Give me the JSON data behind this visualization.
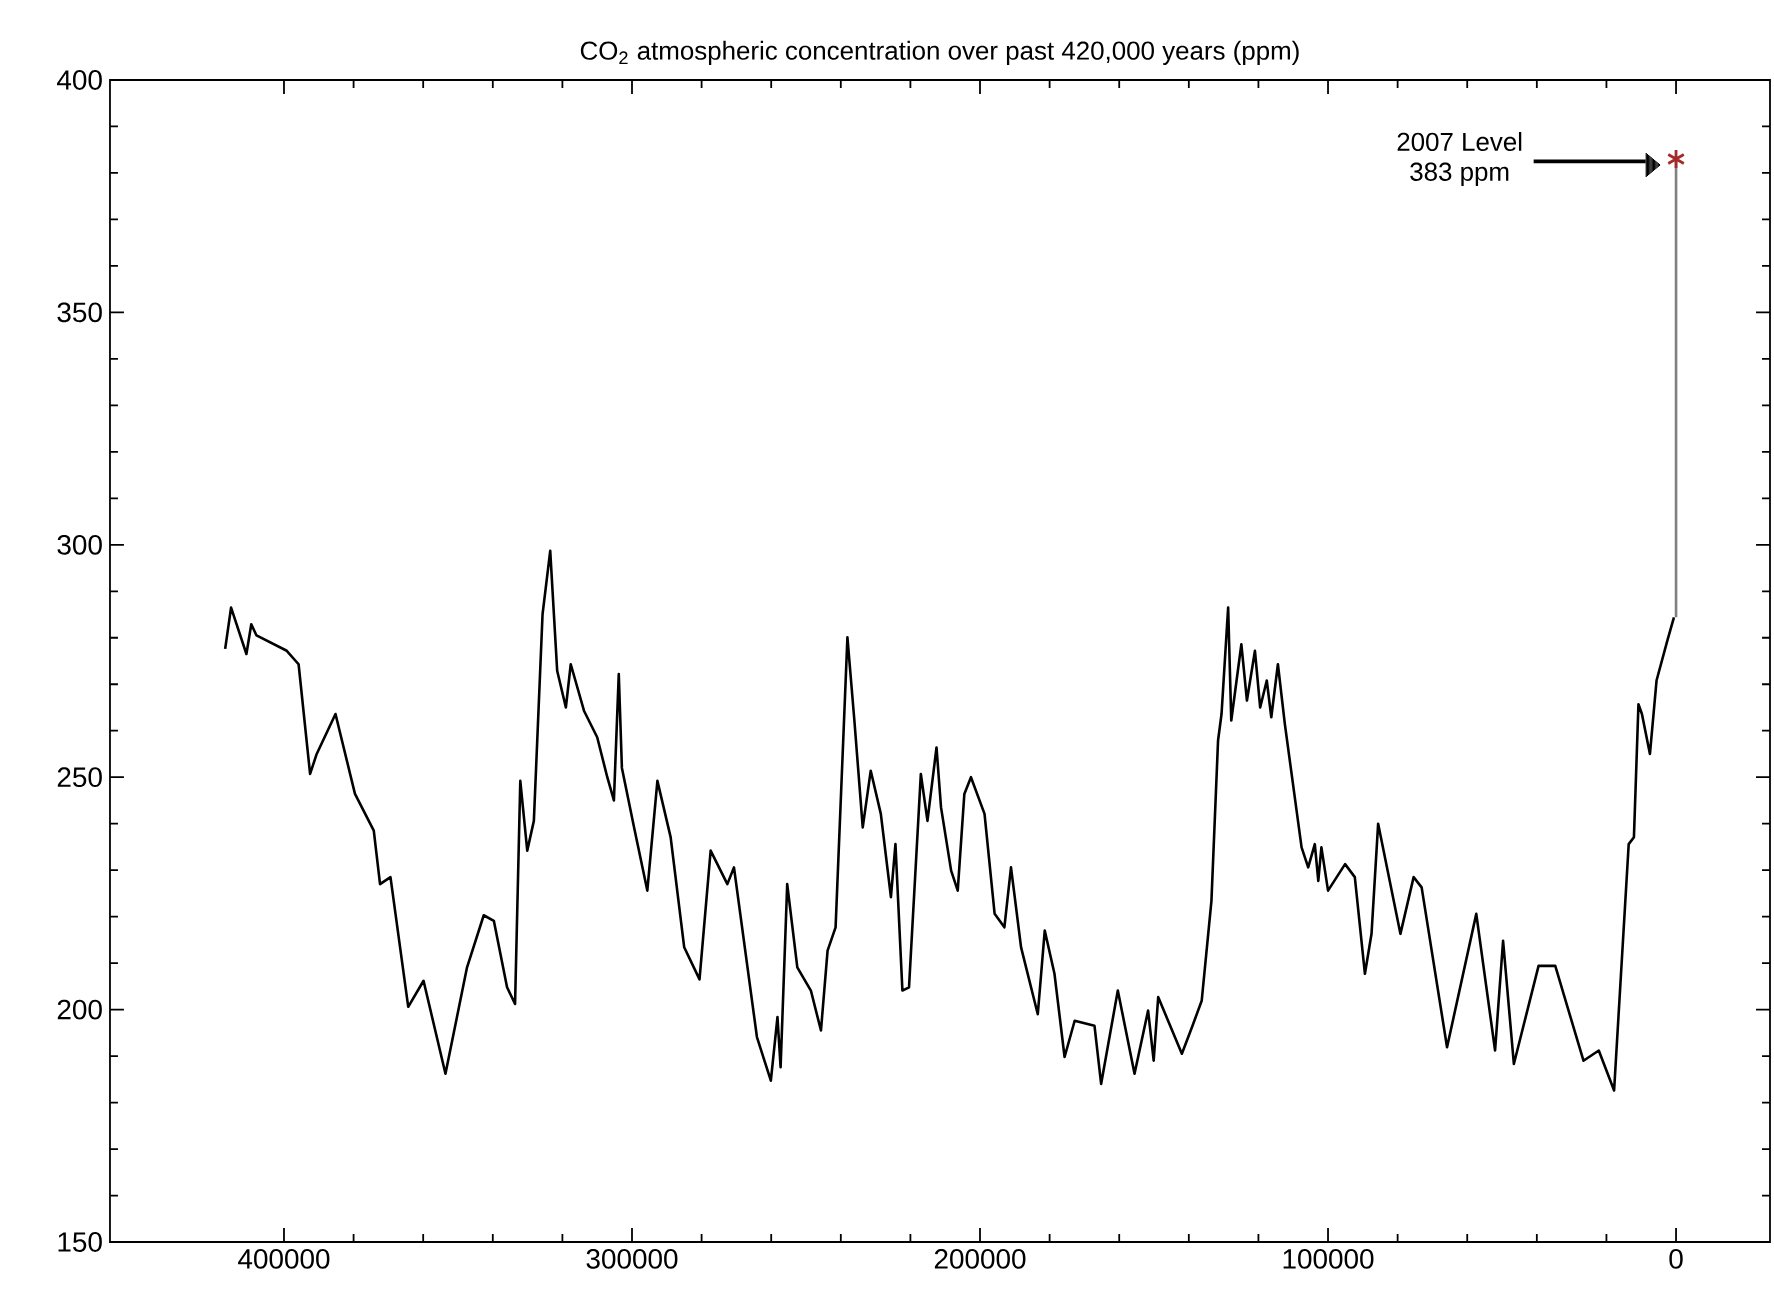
{
  "chart_data": {
    "type": "line",
    "title": "CO$_{2}$ atmospheric concentration over past 420,000 years (ppm)",
    "xlim": [
      450000,
      -27000
    ],
    "ylim": [
      150,
      400
    ],
    "xticks": [
      400000,
      300000,
      200000,
      100000,
      0
    ],
    "yticks": [
      150,
      200,
      250,
      300,
      350,
      400
    ],
    "series": [
      {
        "color": "#000000",
        "x": [
          416900,
          415200,
          410800,
          409400,
          407900,
          399200,
          395800,
          392500,
          390600,
          385200,
          379600,
          374200,
          372400,
          369400,
          364300,
          359900,
          353600,
          347400,
          342600,
          339700,
          335900,
          333600,
          332100,
          330100,
          328200,
          325700,
          323500,
          321500,
          319000,
          317600,
          313800,
          310000,
          307100,
          305200,
          303800,
          302900,
          299400,
          295600,
          292700,
          288900,
          285000,
          280600,
          277400,
          272600,
          270700,
          264100,
          260100,
          258200,
          257300,
          255400,
          252500,
          248600,
          245700,
          243800,
          241500,
          238100,
          236100,
          233700,
          231400,
          228500,
          225600,
          224300,
          222300,
          220400,
          217000,
          215100,
          212500,
          211200,
          208300,
          206400,
          204500,
          202600,
          198700,
          195800,
          193000,
          191100,
          188200,
          183400,
          181400,
          178600,
          175700,
          172800,
          167100,
          165200,
          160400,
          155600,
          151700,
          150100,
          148800,
          142000,
          139100,
          136300,
          133500,
          131600,
          130600,
          128700,
          127800,
          124900,
          123300,
          121000,
          119500,
          117600,
          116300,
          114400,
          112400,
          107600,
          105700,
          103800,
          102800,
          101900,
          100000,
          95100,
          92300,
          89400,
          87500,
          85600,
          79200,
          75400,
          73100,
          65800,
          57400,
          52000,
          49700,
          46600,
          39500,
          34700,
          26600,
          22200,
          17800,
          13600,
          12100,
          10800,
          9800,
          7500,
          5600,
          2500,
          600
        ],
        "values": [
          277.6,
          286.5,
          276.5,
          282.9,
          280.5,
          277.2,
          274.3,
          250.7,
          255.0,
          263.6,
          246.4,
          238.5,
          227.0,
          228.5,
          200.6,
          206.2,
          186.2,
          209.1,
          220.3,
          219.1,
          204.8,
          201.2,
          249.2,
          234.2,
          240.6,
          285.1,
          298.7,
          272.9,
          265.0,
          274.3,
          264.3,
          258.6,
          250.0,
          245.0,
          272.2,
          252.0,
          239.2,
          225.6,
          249.2,
          237.1,
          213.4,
          206.5,
          234.2,
          227.0,
          230.6,
          194.1,
          184.7,
          198.4,
          187.6,
          227.0,
          209.1,
          204.1,
          195.5,
          212.7,
          217.7,
          280.1,
          262.2,
          239.2,
          251.4,
          242.1,
          224.2,
          235.6,
          204.1,
          204.8,
          250.7,
          240.6,
          256.4,
          243.5,
          229.9,
          225.6,
          246.4,
          250.0,
          242.1,
          220.6,
          217.7,
          230.6,
          213.4,
          199.0,
          217.0,
          207.7,
          189.8,
          197.6,
          196.5,
          184.0,
          204.1,
          186.2,
          199.8,
          189.0,
          202.7,
          190.5,
          196.2,
          201.9,
          223.4,
          257.9,
          263.6,
          286.5,
          262.2,
          278.6,
          266.5,
          277.2,
          265.0,
          270.8,
          262.9,
          274.3,
          261.4,
          234.9,
          230.6,
          235.6,
          227.7,
          234.9,
          225.6,
          231.3,
          228.5,
          207.7,
          216.3,
          240.0,
          216.3,
          228.5,
          226.3,
          191.9,
          220.6,
          191.2,
          214.8,
          188.3,
          209.4,
          209.4,
          189.0,
          191.2,
          182.6,
          235.6,
          237.1,
          265.7,
          263.6,
          255.0,
          270.8,
          279.4,
          284.4
        ]
      },
      {
        "type": "line",
        "color": "#808080",
        "x": [
          0,
          0
        ],
        "values": [
          284.4,
          383
        ]
      },
      {
        "type": "scatter",
        "color": "#a52a2a",
        "marker": "cross",
        "x": [
          0
        ],
        "values": [
          383
        ]
      }
    ],
    "annotations": [
      "2007 Level 383 ppm"
    ]
  }
}
